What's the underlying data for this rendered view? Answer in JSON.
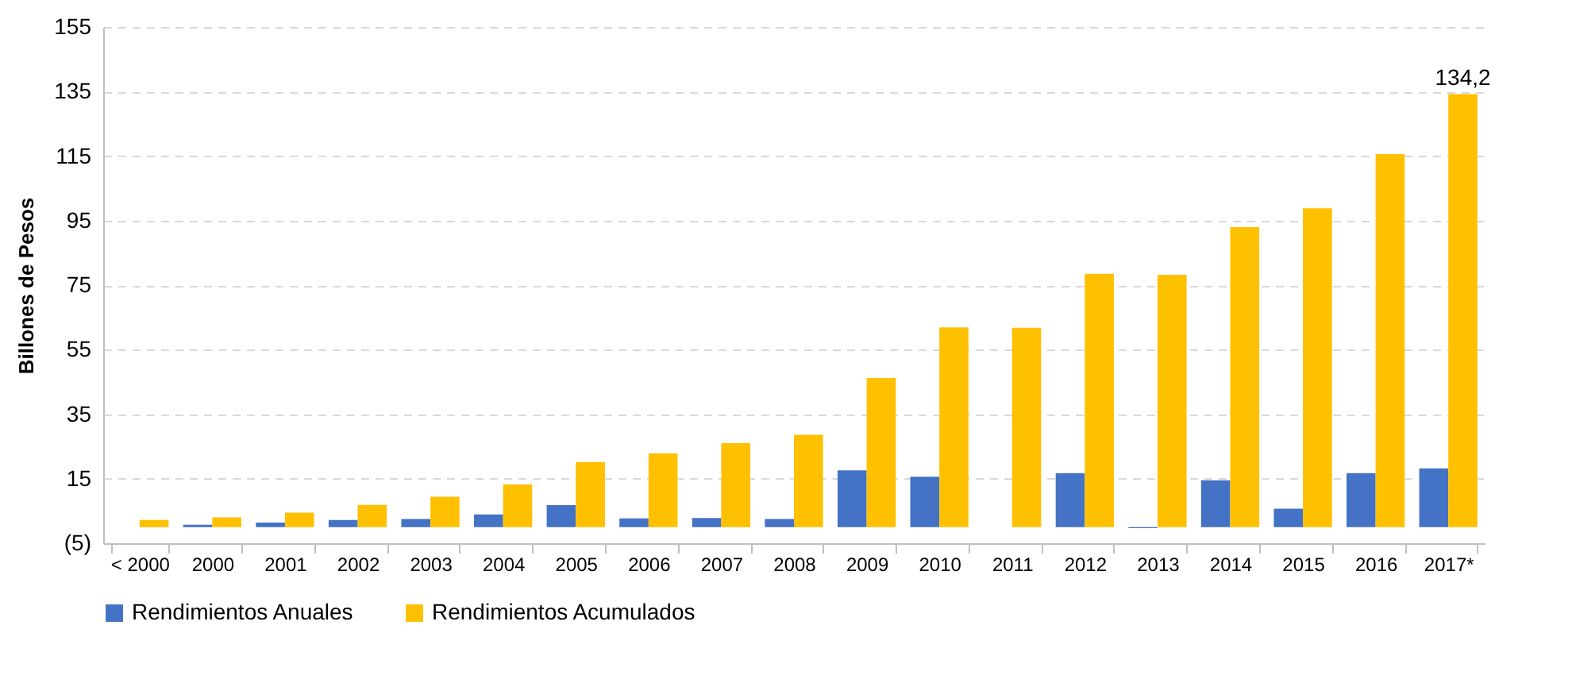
{
  "chart_data": {
    "type": "bar",
    "ylabel": "Billones de Pesos",
    "categories": [
      "< 2000",
      "2000",
      "2001",
      "2002",
      "2003",
      "2004",
      "2005",
      "2006",
      "2007",
      "2008",
      "2009",
      "2010",
      "2011",
      "2012",
      "2013",
      "2014",
      "2015",
      "2016",
      "2017*"
    ],
    "series": [
      {
        "name": "Rendimientos Anuales",
        "color": "#4472c4",
        "values": [
          0,
          0.7,
          1.4,
          2.2,
          2.5,
          3.9,
          6.8,
          2.7,
          2.8,
          2.5,
          17.6,
          15.6,
          0,
          16.7,
          -0.3,
          14.5,
          5.7,
          16.7,
          18.2
        ]
      },
      {
        "name": "Rendimientos Acumulados",
        "color": "#ffc000",
        "values": [
          2.2,
          3.0,
          4.5,
          6.9,
          9.4,
          13.2,
          20.2,
          22.9,
          26.0,
          28.6,
          46.2,
          61.9,
          61.8,
          78.5,
          78.2,
          93.0,
          98.8,
          115.6,
          134.2
        ],
        "value_labels": [
          null,
          null,
          null,
          null,
          null,
          null,
          null,
          null,
          null,
          null,
          null,
          null,
          null,
          null,
          null,
          null,
          null,
          null,
          "134,2"
        ]
      }
    ],
    "ylim": [
      -5,
      155
    ],
    "yticks": [
      {
        "value": -5,
        "label": "(5)"
      },
      15,
      35,
      55,
      75,
      95,
      115,
      135,
      155
    ],
    "grid": "y",
    "legend": "bottom"
  }
}
